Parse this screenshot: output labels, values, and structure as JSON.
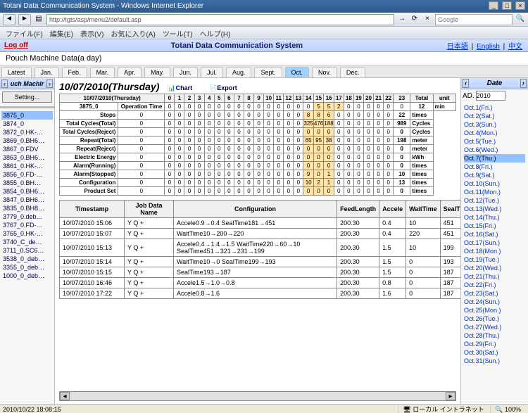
{
  "window": {
    "title": "Totani Data Communication System - Windows Internet Explorer"
  },
  "ie": {
    "address_url": "http://tgts/asp/menu2/default.asp",
    "search_placeholder": "Google",
    "menus": [
      "ファイル(F)",
      "編集(E)",
      "表示(V)",
      "お気に入り(A)",
      "ツール(T)",
      "ヘルプ(H)"
    ]
  },
  "appbar": {
    "logoff": "Log off",
    "title": "Totani Data Communication System",
    "lang_ja": "日本語",
    "lang_en": "English",
    "lang_zh": "中文"
  },
  "subtitle": "Pouch Machine Data(a day)",
  "month_tabs": [
    "Latest",
    "Jan.",
    "Feb.",
    "Mar.",
    "Apr.",
    "May.",
    "Jun.",
    "Jul.",
    "Aug.",
    "Sept.",
    "Oct.",
    "Nov.",
    "Dec."
  ],
  "month_active_index": 10,
  "left": {
    "heading": "uch Machir",
    "setting": "Setting...",
    "items": [
      "3875_0",
      "3874_0",
      "3872_0.HK-…",
      "3869_0.BH6…",
      "3867_0.FDV",
      "3863_0.BH6…",
      "3861_0.HK-…",
      "3856_0.FD-…",
      "3855_0.BH…",
      "3854_0.BH6…",
      "3847_0.BH6…",
      "3835_0.BH8…",
      "3779_0.deb…",
      "3767_0.FD-…",
      "3765_0.HK-…",
      "3740_C_de…",
      "3711_0.SC6…",
      "3538_0_deb…",
      "3355_0_deb…",
      "1000_0_deb…"
    ],
    "selected_index": 0
  },
  "center": {
    "day_title": "10/07/2010(Thursday)",
    "chart_btn": "Chart",
    "export_btn": "Export",
    "hour_header_label": "10/07/2010(Thursday)",
    "side_header": "3875_0",
    "hours": [
      "0",
      "1",
      "2",
      "3",
      "4",
      "5",
      "6",
      "7",
      "8",
      "9",
      "10",
      "11",
      "12",
      "13",
      "14",
      "15",
      "16",
      "17",
      "18",
      "19",
      "20",
      "21",
      "22",
      "23",
      "Total",
      "unit"
    ],
    "rows": [
      {
        "label": "Operation Time",
        "vals": [
          "0",
          "0",
          "0",
          "0",
          "0",
          "0",
          "0",
          "0",
          "0",
          "0",
          "0",
          "0",
          "0",
          "0",
          "0",
          "5",
          "5",
          "2",
          "0",
          "0",
          "0",
          "0",
          "0",
          "0"
        ],
        "total": "12",
        "unit": "min"
      },
      {
        "label": "Stops",
        "vals": [
          "0",
          "0",
          "0",
          "0",
          "0",
          "0",
          "0",
          "0",
          "0",
          "0",
          "0",
          "0",
          "0",
          "0",
          "0",
          "8",
          "8",
          "6",
          "0",
          "0",
          "0",
          "0",
          "0",
          "0"
        ],
        "total": "22",
        "unit": "times"
      },
      {
        "label": "Total Cycles(Total)",
        "vals": [
          "0",
          "0",
          "0",
          "0",
          "0",
          "0",
          "0",
          "0",
          "0",
          "0",
          "0",
          "0",
          "0",
          "0",
          "0",
          "325",
          "476",
          "188",
          "0",
          "0",
          "0",
          "0",
          "0",
          "0"
        ],
        "total": "989",
        "unit": "Cycles"
      },
      {
        "label": "Total Cycles(Reject)",
        "vals": [
          "0",
          "0",
          "0",
          "0",
          "0",
          "0",
          "0",
          "0",
          "0",
          "0",
          "0",
          "0",
          "0",
          "0",
          "0",
          "0",
          "0",
          "0",
          "0",
          "0",
          "0",
          "0",
          "0",
          "0"
        ],
        "total": "0",
        "unit": "Cycles"
      },
      {
        "label": "Repeat(Total)",
        "vals": [
          "0",
          "0",
          "0",
          "0",
          "0",
          "0",
          "0",
          "0",
          "0",
          "0",
          "0",
          "0",
          "0",
          "0",
          "0",
          "65",
          "95",
          "38",
          "0",
          "0",
          "0",
          "0",
          "0",
          "0"
        ],
        "total": "198",
        "unit": "meter"
      },
      {
        "label": "Repeat(Reject)",
        "vals": [
          "0",
          "0",
          "0",
          "0",
          "0",
          "0",
          "0",
          "0",
          "0",
          "0",
          "0",
          "0",
          "0",
          "0",
          "0",
          "0",
          "0",
          "0",
          "0",
          "0",
          "0",
          "0",
          "0",
          "0"
        ],
        "total": "0",
        "unit": "meter"
      },
      {
        "label": "Electric Energy",
        "vals": [
          "0",
          "0",
          "0",
          "0",
          "0",
          "0",
          "0",
          "0",
          "0",
          "0",
          "0",
          "0",
          "0",
          "0",
          "0",
          "0",
          "0",
          "0",
          "0",
          "0",
          "0",
          "0",
          "0",
          "0"
        ],
        "total": "0",
        "unit": "kWh"
      },
      {
        "label": "Alarm(Running)",
        "vals": [
          "0",
          "0",
          "0",
          "0",
          "0",
          "0",
          "0",
          "0",
          "0",
          "0",
          "0",
          "0",
          "0",
          "0",
          "0",
          "0",
          "0",
          "0",
          "0",
          "0",
          "0",
          "0",
          "0",
          "0"
        ],
        "total": "0",
        "unit": "times"
      },
      {
        "label": "Alarm(Stopped)",
        "vals": [
          "0",
          "0",
          "0",
          "0",
          "0",
          "0",
          "0",
          "0",
          "0",
          "0",
          "0",
          "0",
          "0",
          "0",
          "0",
          "9",
          "0",
          "1",
          "0",
          "0",
          "0",
          "0",
          "0",
          "0"
        ],
        "total": "10",
        "unit": "times"
      },
      {
        "label": "Configuration",
        "vals": [
          "0",
          "0",
          "0",
          "0",
          "0",
          "0",
          "0",
          "0",
          "0",
          "0",
          "0",
          "0",
          "0",
          "0",
          "0",
          "10",
          "2",
          "1",
          "0",
          "0",
          "0",
          "0",
          "0",
          "0"
        ],
        "total": "13",
        "unit": "times"
      },
      {
        "label": "Product Set",
        "vals": [
          "0",
          "0",
          "0",
          "0",
          "0",
          "0",
          "0",
          "0",
          "0",
          "0",
          "0",
          "0",
          "0",
          "0",
          "0",
          "0",
          "0",
          "0",
          "0",
          "0",
          "0",
          "0",
          "0",
          "0"
        ],
        "total": "0",
        "unit": "times"
      }
    ],
    "shade_cols": [
      15,
      16,
      17
    ],
    "cfg_headers": [
      "Timestamp",
      "Job Data Name",
      "Configuration",
      "FeedLength",
      "Accele",
      "WaitTime",
      "SealTime"
    ],
    "cfg_rows": [
      [
        "10/07/2010 15:06",
        "Y Q +",
        "Accele0.9→0.4 SealTime181→451",
        "200.30",
        "0.4",
        "10",
        "451"
      ],
      [
        "10/07/2010 15:07",
        "Y Q +",
        "WaitTime10→200→220",
        "200.30",
        "0.4",
        "220",
        "451"
      ],
      [
        "10/07/2010 15:13",
        "Y Q +",
        "Accele0.4→1.4→1.5 WaitTime220→60→10 SealTime451→321→231→199",
        "200.30",
        "1.5",
        "10",
        "199"
      ],
      [
        "10/07/2010 15:14",
        "Y Q +",
        "WaitTime10→0 SealTime199→193",
        "200.30",
        "1.5",
        "0",
        "193"
      ],
      [
        "10/07/2010 15:15",
        "Y Q +",
        "SealTime193→187",
        "200.30",
        "1.5",
        "0",
        "187"
      ],
      [
        "10/07/2010 16:46",
        "Y Q +",
        "Accele1.5→1.0→0.8",
        "200.30",
        "0.8",
        "0",
        "187"
      ],
      [
        "10/07/2010 17:22",
        "Y Q +",
        "Accele0.8→1.6",
        "200.30",
        "1.6",
        "0",
        "187"
      ]
    ]
  },
  "right": {
    "heading": "Date",
    "ad_label": "AD.",
    "ad_value": "2010",
    "days": [
      "Oct.1(Fri.)",
      "Oct.2(Sat.)",
      "Oct.3(Sun.)",
      "Oct.4(Mon.)",
      "Oct.5(Tue.)",
      "Oct.6(Wed.)",
      "Oct.7(Thu.)",
      "Oct.8(Fri.)",
      "Oct.9(Sat.)",
      "Oct.10(Sun.)",
      "Oct.11(Mon.)",
      "Oct.12(Tue.)",
      "Oct.13(Wed.)",
      "Oct.14(Thu.)",
      "Oct.15(Fri.)",
      "Oct.16(Sat.)",
      "Oct.17(Sun.)",
      "Oct.18(Mon.)",
      "Oct.19(Tue.)",
      "Oct.20(Wed.)",
      "Oct.21(Thu.)",
      "Oct.22(Fri.)",
      "Oct.23(Sat.)",
      "Oct.24(Sun.)",
      "Oct.25(Mon.)",
      "Oct.26(Tue.)",
      "Oct.27(Wed.)",
      "Oct.28(Thu.)",
      "Oct.29(Fri.)",
      "Oct.30(Sat.)",
      "Oct.31(Sun.)"
    ],
    "selected_index": 6
  },
  "status": {
    "left": "2010/10/22 18:08:15",
    "zone": "ローカル イントラネット",
    "zoom": "100%"
  }
}
